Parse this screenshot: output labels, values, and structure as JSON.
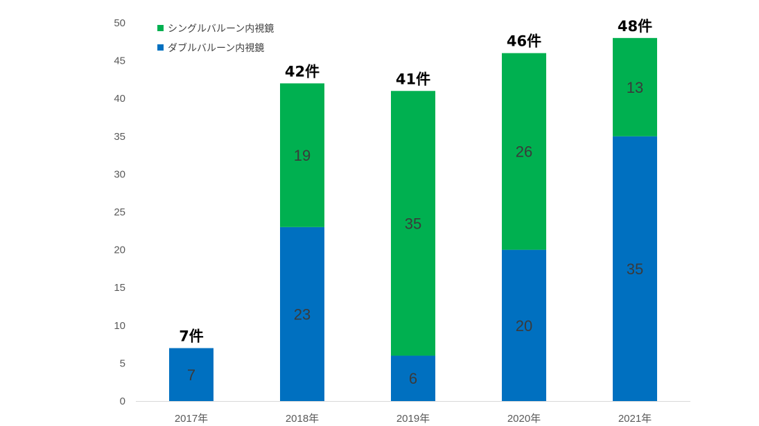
{
  "chart_data": {
    "type": "bar",
    "stacked": true,
    "categories": [
      "2017年",
      "2018年",
      "2019年",
      "2020年",
      "2021年"
    ],
    "series": [
      {
        "name": "ダブルバルーン内視鏡",
        "color": "#0070C0",
        "values": [
          7,
          23,
          6,
          20,
          35
        ]
      },
      {
        "name": "シングルバルーン内視鏡",
        "color": "#00B050",
        "values": [
          0,
          19,
          35,
          26,
          13
        ]
      }
    ],
    "totals": [
      "7件",
      "42件",
      "41件",
      "46件",
      "48件"
    ],
    "ylim": [
      0,
      50
    ],
    "yticks": [
      0,
      5,
      10,
      15,
      20,
      25,
      30,
      35,
      40,
      45,
      50
    ],
    "grid": false,
    "legend": "top-left",
    "legend_order": [
      "シングルバルーン内視鏡",
      "ダブルバルーン内視鏡"
    ]
  }
}
